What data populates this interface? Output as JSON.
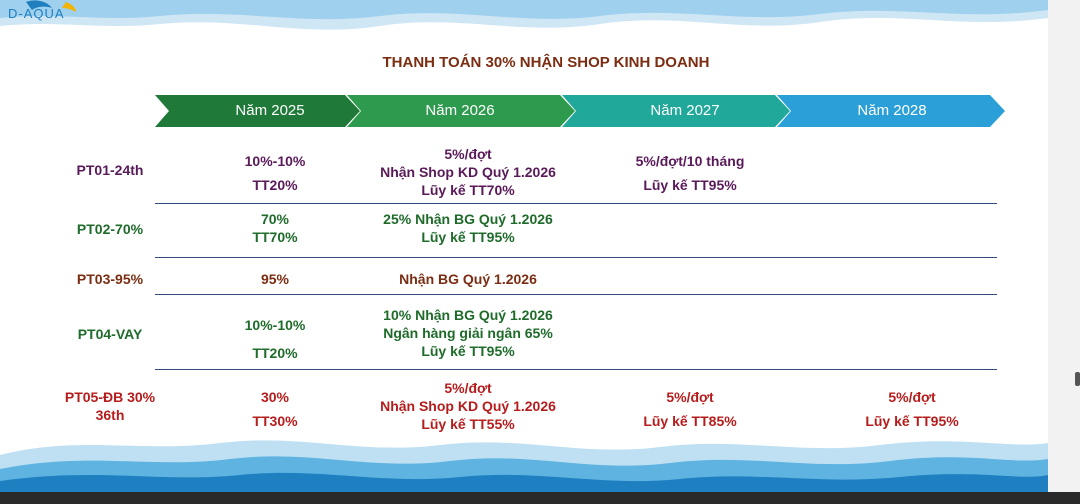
{
  "logo": {
    "text": "D-AQUA"
  },
  "title": "THANH TOÁN 30% NHẬN SHOP KINH DOANH",
  "years": [
    {
      "label": "Năm 2025",
      "color": "#1f7a3a"
    },
    {
      "label": "Năm 2026",
      "color": "#2e9a4e"
    },
    {
      "label": "Năm 2027",
      "color": "#20a89a"
    },
    {
      "label": "Năm 2028",
      "color": "#2a9fd8"
    }
  ],
  "rows": [
    {
      "label": "PT01-24th",
      "y2025": [
        "10%-10%",
        "TT20%"
      ],
      "y2026": [
        "5%/đợt",
        "Nhận Shop KD Quý 1.2026",
        "Lũy kế TT70%"
      ],
      "y2027": [
        "5%/đợt/10 tháng",
        "Lũy kế TT95%"
      ],
      "y2028": []
    },
    {
      "label": "PT02-70%",
      "y2025": [
        "70%",
        "TT70%"
      ],
      "y2026": [
        "25% Nhận BG Quý 1.2026",
        "Lũy kế TT95%"
      ],
      "y2027": [],
      "y2028": []
    },
    {
      "label": "PT03-95%",
      "y2025": [
        "95%"
      ],
      "y2026": [
        "Nhận BG Quý 1.2026"
      ],
      "y2027": [],
      "y2028": []
    },
    {
      "label": "PT04-VAY",
      "y2025": [
        "10%-10%",
        "TT20%"
      ],
      "y2026": [
        "10% Nhận BG Quý 1.2026",
        "Ngân hàng giải ngân 65%",
        "Lũy kế TT95%"
      ],
      "y2027": [],
      "y2028": []
    },
    {
      "label": "PT05-ĐB 30% 36th",
      "label_lines": [
        "PT05-ĐB 30%",
        "36th"
      ],
      "y2025": [
        "30%",
        "TT30%"
      ],
      "y2026": [
        "5%/đợt",
        "Nhận Shop KD Quý 1.2026",
        "Lũy kế TT55%"
      ],
      "y2027": [
        "5%/đợt",
        "Lũy kế TT85%"
      ],
      "y2028": [
        "5%/đợt",
        "Lũy kế TT95%"
      ]
    }
  ]
}
